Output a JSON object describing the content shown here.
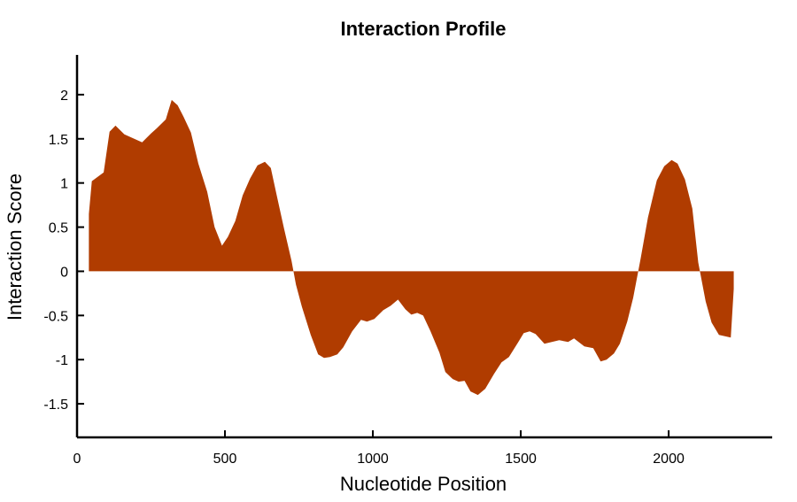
{
  "chart_data": {
    "type": "area",
    "title": "Interaction Profile",
    "xlabel": "Nucleotide Position",
    "ylabel": "Interaction Score",
    "xlim": [
      0,
      2350
    ],
    "ylim": [
      -1.88,
      2.45
    ],
    "xticks": [
      0,
      500,
      1000,
      1500,
      2000
    ],
    "yticks": [
      -1.5,
      -1,
      -0.5,
      0,
      0.5,
      1,
      1.5,
      2
    ],
    "xtick_labels": [
      "0",
      "500",
      "1000",
      "1500",
      "2000"
    ],
    "ytick_labels": [
      "-1.5",
      "-1",
      "-0.5",
      "0",
      "0.5",
      "1",
      "1.5",
      "2"
    ],
    "grid": false,
    "fill_color": "#b03c00",
    "series": [
      {
        "x": [
          40,
          50,
          90,
          110,
          130,
          160,
          220,
          250,
          270,
          300,
          320,
          340,
          360,
          385,
          410,
          440,
          465,
          490,
          510,
          535,
          560,
          585,
          610,
          635,
          655,
          675,
          700,
          725,
          740,
          760,
          790,
          815,
          835,
          855,
          880,
          900,
          930,
          960,
          980,
          1005,
          1035,
          1060,
          1085,
          1110,
          1130,
          1150,
          1170,
          1195,
          1225,
          1245,
          1270,
          1290,
          1310,
          1330,
          1355,
          1380,
          1410,
          1435,
          1460,
          1490,
          1510,
          1530,
          1550,
          1580,
          1605,
          1630,
          1660,
          1680,
          1715,
          1745,
          1770,
          1790,
          1815,
          1835,
          1860,
          1880,
          1905,
          1930,
          1960,
          1985,
          2010,
          2030,
          2055,
          2080,
          2100,
          2125,
          2145,
          2170,
          2210,
          2220
        ],
        "y": [
          0.65,
          1.02,
          1.12,
          1.58,
          1.65,
          1.55,
          1.46,
          1.56,
          1.62,
          1.72,
          1.94,
          1.88,
          1.75,
          1.57,
          1.22,
          0.9,
          0.5,
          0.29,
          0.39,
          0.57,
          0.86,
          1.05,
          1.2,
          1.24,
          1.17,
          0.86,
          0.48,
          0.12,
          -0.15,
          -0.4,
          -0.72,
          -0.94,
          -0.98,
          -0.97,
          -0.94,
          -0.86,
          -0.68,
          -0.55,
          -0.57,
          -0.54,
          -0.44,
          -0.39,
          -0.32,
          -0.43,
          -0.49,
          -0.47,
          -0.5,
          -0.68,
          -0.92,
          -1.14,
          -1.22,
          -1.25,
          -1.24,
          -1.36,
          -1.4,
          -1.33,
          -1.16,
          -1.03,
          -0.97,
          -0.81,
          -0.7,
          -0.68,
          -0.71,
          -0.82,
          -0.8,
          -0.78,
          -0.8,
          -0.76,
          -0.85,
          -0.87,
          -1.02,
          -1.0,
          -0.93,
          -0.82,
          -0.57,
          -0.3,
          0.14,
          0.61,
          1.03,
          1.19,
          1.26,
          1.22,
          1.04,
          0.71,
          0.1,
          -0.34,
          -0.58,
          -0.72,
          -0.75,
          -0.2
        ]
      }
    ]
  }
}
